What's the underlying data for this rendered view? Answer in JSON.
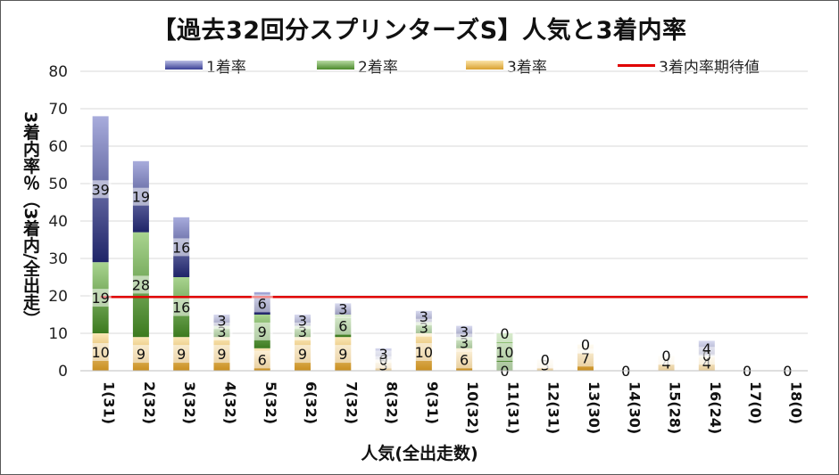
{
  "chart_data": {
    "type": "bar",
    "title": "【過去32回分スプリンターズS】人気と3着内率",
    "xlabel": "人気(全出走数)",
    "ylabel": "3着内率％（3着内/全出走）",
    "categories": [
      "1(31)",
      "2(32)",
      "3(32)",
      "4(32)",
      "5(32)",
      "6(32)",
      "7(32)",
      "8(32)",
      "9(31)",
      "10(32)",
      "11(31)",
      "12(31)",
      "13(30)",
      "14(30)",
      "15(28)",
      "16(24)",
      "17(0)",
      "18(0)"
    ],
    "ylim": [
      0,
      80
    ],
    "yticks": [
      "0",
      "10",
      "20",
      "30",
      "40",
      "50",
      "60",
      "70",
      "80"
    ],
    "stacked": true,
    "grid": true,
    "legend_position": "top",
    "series": [
      {
        "name": "1着率",
        "color": "#3a3f96",
        "values": [
          39,
          19,
          16,
          3,
          6,
          3,
          3,
          3,
          3,
          3,
          0,
          0,
          0,
          0,
          0,
          4,
          0,
          0
        ]
      },
      {
        "name": "2着率",
        "color": "#5a9a37",
        "values": [
          19,
          28,
          16,
          3,
          9,
          3,
          6,
          0,
          3,
          3,
          10,
          0,
          0,
          0,
          0,
          0,
          0,
          0
        ]
      },
      {
        "name": "3着率",
        "color": "#e8b83a",
        "values": [
          10,
          9,
          9,
          9,
          6,
          9,
          9,
          3,
          10,
          6,
          0,
          3,
          7,
          0,
          4,
          4,
          0,
          0
        ]
      }
    ],
    "reference_line": {
      "name": "3着内率期待値",
      "value": 19.7,
      "color": "#e00000"
    }
  }
}
